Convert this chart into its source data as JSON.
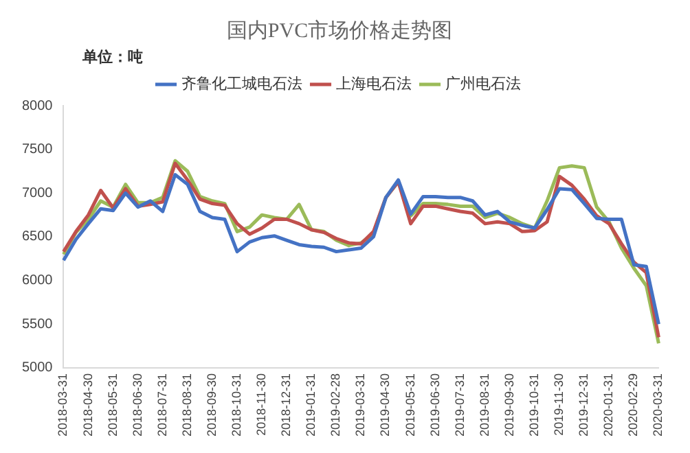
{
  "chart_data": {
    "type": "line",
    "title": "国内PVC市场价格走势图",
    "annotations": [
      "单位：吨"
    ],
    "categories": [
      "2018-03-31",
      null,
      "2018-04-30",
      null,
      "2018-05-31",
      null,
      "2018-06-30",
      null,
      "2018-07-31",
      null,
      "2018-08-31",
      null,
      "2018-09-30",
      null,
      "2018-10-31",
      null,
      "2018-11-30",
      null,
      "2018-12-31",
      null,
      "2019-01-31",
      null,
      "2019-02-28",
      null,
      "2019-03-31",
      null,
      "2019-04-30",
      null,
      "2019-05-31",
      null,
      "2019-06-30",
      null,
      "2019-07-31",
      null,
      "2019-08-31",
      null,
      "2019-09-30",
      null,
      "2019-10-31",
      null,
      "2019-11-30",
      null,
      "2019-12-31",
      null,
      "2020-01-31",
      null,
      "2020-02-29",
      null,
      "2020-03-31"
    ],
    "series": [
      {
        "name": "齐鲁化工城电石法",
        "color": "#4472c4",
        "values": [
          6230,
          6470,
          6650,
          6820,
          6800,
          7000,
          6840,
          6910,
          6790,
          7210,
          7100,
          6790,
          6720,
          6700,
          6330,
          6440,
          6490,
          6510,
          6460,
          6410,
          6390,
          6380,
          6330,
          6350,
          6370,
          6500,
          6950,
          7150,
          6760,
          6960,
          6960,
          6950,
          6950,
          6910,
          6750,
          6790,
          6670,
          6630,
          6600,
          6810,
          7050,
          7040,
          6880,
          6710,
          6700,
          6700,
          6180,
          6160,
          5500
        ]
      },
      {
        "name": "上海电石法",
        "color": "#c0504d",
        "values": [
          6330,
          6560,
          6750,
          7030,
          6830,
          7050,
          6850,
          6870,
          6900,
          7340,
          7150,
          6930,
          6880,
          6860,
          6650,
          6530,
          6600,
          6700,
          6700,
          6650,
          6580,
          6550,
          6480,
          6430,
          6420,
          6560,
          6950,
          7130,
          6650,
          6850,
          6850,
          6820,
          6790,
          6770,
          6650,
          6670,
          6650,
          6560,
          6570,
          6670,
          7190,
          7090,
          6930,
          6740,
          6650,
          6420,
          6210,
          6090,
          5350
        ]
      },
      {
        "name": "广州电石法",
        "color": "#9bbb59",
        "values": [
          6300,
          6550,
          6700,
          6910,
          6840,
          7100,
          6890,
          6890,
          6950,
          7370,
          7250,
          6960,
          6910,
          6880,
          6560,
          6610,
          6750,
          6720,
          6700,
          6870,
          6580,
          6560,
          6460,
          6400,
          6430,
          6540,
          6950,
          7130,
          6740,
          6880,
          6880,
          6870,
          6850,
          6850,
          6720,
          6770,
          6720,
          6650,
          6600,
          6910,
          7290,
          7310,
          7290,
          6840,
          6670,
          6370,
          6140,
          5940,
          5280
        ]
      }
    ],
    "ylim": [
      5000,
      8000
    ],
    "yticks": [
      5000,
      5500,
      6000,
      6500,
      7000,
      7500,
      8000
    ],
    "grid": false,
    "legend": "top"
  }
}
